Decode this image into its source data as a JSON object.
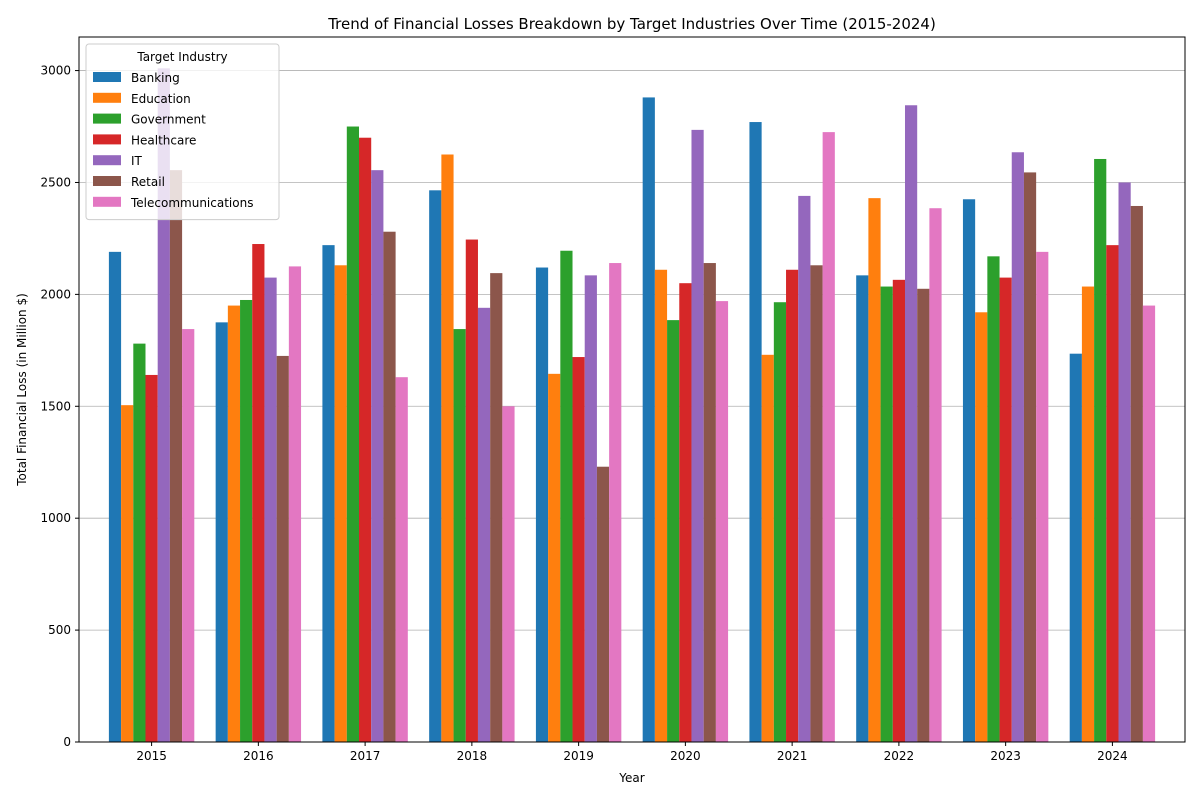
{
  "chart_data": {
    "type": "bar",
    "title": "Trend of Financial Losses Breakdown by Target Industries Over Time (2015-2024)",
    "xlabel": "Year",
    "ylabel": "Total Financial Loss (in Million $)",
    "ylim": [
      0,
      3150
    ],
    "yticks": [
      0,
      500,
      1000,
      1500,
      2000,
      2500,
      3000
    ],
    "grid": "y",
    "legend_title": "Target Industry",
    "legend_position": "top-left",
    "categories": [
      "2015",
      "2016",
      "2017",
      "2018",
      "2019",
      "2020",
      "2021",
      "2022",
      "2023",
      "2024"
    ],
    "series": [
      {
        "name": "Banking",
        "color": "#1f77b4",
        "values": [
          2190,
          1875,
          2220,
          2465,
          2120,
          2880,
          2770,
          2085,
          2425,
          1735
        ]
      },
      {
        "name": "Education",
        "color": "#ff7f0e",
        "values": [
          1505,
          1950,
          2130,
          2625,
          1645,
          2110,
          1730,
          2430,
          1920,
          2035
        ]
      },
      {
        "name": "Government",
        "color": "#2ca02c",
        "values": [
          1780,
          1975,
          2750,
          1845,
          2195,
          1885,
          1965,
          2035,
          2170,
          2605
        ]
      },
      {
        "name": "Healthcare",
        "color": "#d62728",
        "values": [
          1640,
          2225,
          2700,
          2245,
          1720,
          2050,
          2110,
          2065,
          2075,
          2220
        ]
      },
      {
        "name": "IT",
        "color": "#9467bd",
        "values": [
          3010,
          2075,
          2555,
          1940,
          2085,
          2735,
          2440,
          2845,
          2635,
          2500
        ]
      },
      {
        "name": "Retail",
        "color": "#8c564b",
        "values": [
          2555,
          1725,
          2280,
          2095,
          1230,
          2140,
          2130,
          2025,
          2545,
          2395
        ]
      },
      {
        "name": "Telecommunications",
        "color": "#e377c2",
        "values": [
          1845,
          2125,
          1630,
          1500,
          2140,
          1970,
          2725,
          2385,
          2190,
          1950
        ]
      }
    ]
  }
}
